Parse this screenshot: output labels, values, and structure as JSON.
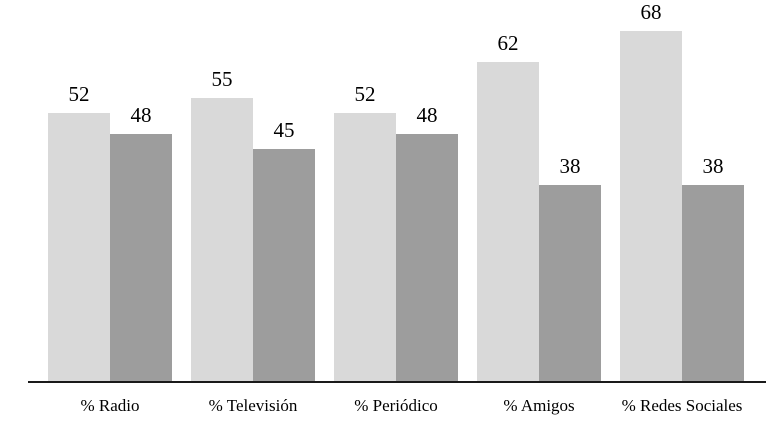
{
  "chart_data": {
    "type": "bar",
    "categories": [
      "% Radio",
      "% Televisión",
      "% Periódico",
      "% Amigos",
      "% Redes Sociales"
    ],
    "series": [
      {
        "name": "serie-clara",
        "color": "#d9d9d9",
        "values": [
          52,
          55,
          52,
          62,
          68
        ]
      },
      {
        "name": "serie-oscura",
        "color": "#9d9d9d",
        "values": [
          48,
          45,
          48,
          38,
          38
        ]
      }
    ],
    "title": "",
    "xlabel": "",
    "ylabel": "",
    "ylim": [
      0,
      74
    ],
    "grid": false,
    "legend": "none",
    "value_labels": true,
    "axis_line_color": "#1a1a1a",
    "background": "#ffffff"
  }
}
